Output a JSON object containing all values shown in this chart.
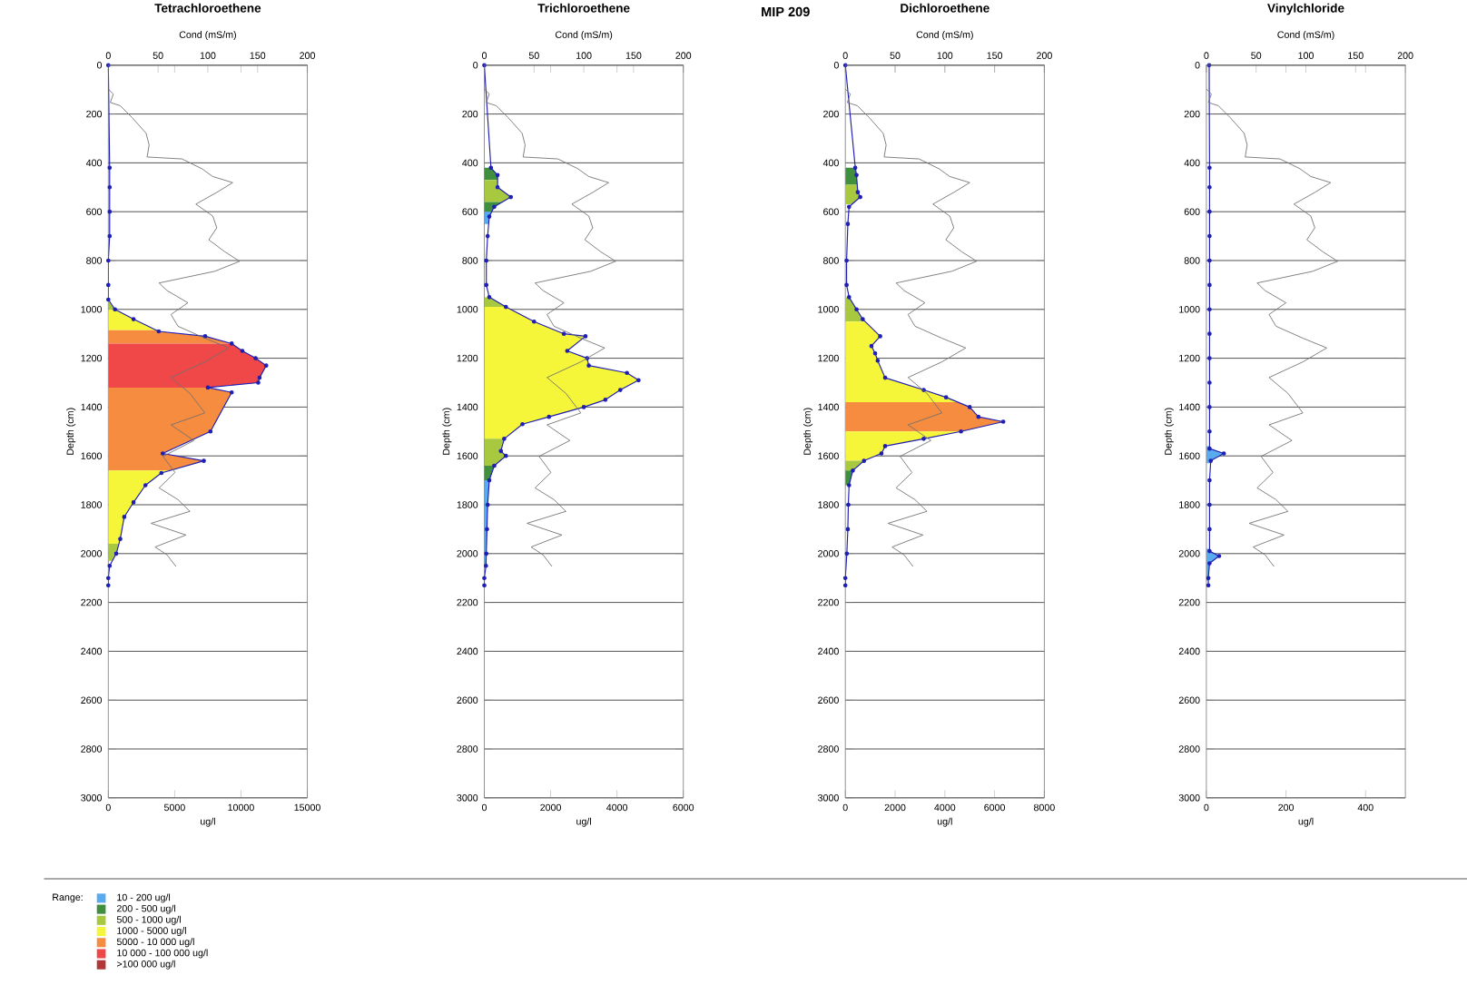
{
  "chart_data": [
    {
      "type": "area",
      "title": "Tetrachloroethene",
      "x2label": "Cond (mS/m)",
      "xlabel": "ug/l",
      "ylabel": "Depth (cm)",
      "orientation": "horizontal",
      "grid": "y",
      "xlim": [
        0,
        15000
      ],
      "xticks": [
        0,
        5000,
        10000,
        15000
      ],
      "x2lim": [
        0,
        200
      ],
      "x2ticks": [
        0,
        50,
        100,
        150,
        200
      ],
      "ylim": [
        3000,
        0
      ],
      "yticks": [
        0,
        200,
        400,
        600,
        800,
        1000,
        1200,
        1400,
        1600,
        1800,
        2000,
        2200,
        2400,
        2600,
        2800,
        3000
      ],
      "series": [
        {
          "type": "area",
          "color": "#a8c840",
          "x": [
            970,
            1000
          ],
          "values": [
            100,
            500
          ]
        },
        {
          "type": "area",
          "color": "#f5f53a",
          "x": [
            1000,
            1040,
            1085
          ],
          "values": [
            500,
            1900,
            3600
          ]
        },
        {
          "type": "area",
          "color": "#f58c40",
          "x": [
            1085,
            1090,
            1110,
            1140
          ],
          "values": [
            3600,
            3800,
            7300,
            9300
          ]
        },
        {
          "type": "area",
          "color": "#f04848",
          "x": [
            1140,
            1170,
            1200,
            1230,
            1280,
            1300,
            1320
          ],
          "values": [
            9300,
            10100,
            11100,
            11900,
            11400,
            11300,
            7500
          ]
        },
        {
          "type": "area",
          "color": "#f58c40",
          "x": [
            1320,
            1340,
            1500,
            1590,
            1620,
            1660
          ],
          "values": [
            7500,
            9300,
            7700,
            4100,
            7200,
            4600
          ]
        },
        {
          "type": "area",
          "color": "#f5f53a",
          "x": [
            1660,
            1670,
            1720,
            1790,
            1850,
            1940,
            1960
          ],
          "values": [
            4600,
            4000,
            2800,
            1900,
            1200,
            900,
            800
          ]
        },
        {
          "type": "area",
          "color": "#a8c840",
          "x": [
            1960,
            2000,
            2030
          ],
          "values": [
            800,
            600,
            300
          ]
        },
        {
          "type": "line",
          "color": "#1f1fb4",
          "marker": "circle",
          "x": [
            0,
            420,
            500,
            600,
            700,
            800,
            900,
            960,
            1000,
            1040,
            1090,
            1110,
            1140,
            1170,
            1200,
            1230,
            1280,
            1300,
            1320,
            1340,
            1500,
            1590,
            1620,
            1670,
            1720,
            1790,
            1850,
            1940,
            2000,
            2050,
            2100,
            2130
          ],
          "values": [
            0,
            100,
            100,
            100,
            100,
            0,
            0,
            0,
            500,
            1900,
            3800,
            7300,
            9300,
            10100,
            11100,
            11900,
            11400,
            11300,
            7500,
            9300,
            7700,
            4100,
            7200,
            4000,
            2800,
            1900,
            1200,
            900,
            600,
            100,
            0,
            0
          ]
        },
        {
          "type": "line",
          "axis": "x2",
          "color": "#707070",
          "x": [
            98,
            118,
            153,
            166,
            215,
            279,
            327,
            376,
            384,
            424,
            456,
            481,
            521,
            569,
            618,
            666,
            715,
            764,
            803,
            844,
            892,
            923,
            973,
            1021,
            1069,
            1118,
            1158,
            1215,
            1279,
            1344,
            1424,
            1473,
            1537,
            1602,
            1668,
            1731,
            1779,
            1827,
            1876,
            1924,
            1973,
            2005,
            2053
          ],
          "values": [
            0,
            5,
            2,
            12,
            24,
            38,
            41,
            39,
            74,
            94,
            105,
            125,
            109,
            88,
            105,
            109,
            101,
            117,
            132,
            107,
            51,
            59,
            80,
            63,
            70,
            97,
            121,
            97,
            63,
            82,
            97,
            63,
            86,
            55,
            67,
            51,
            70,
            82,
            43,
            78,
            47,
            59,
            68
          ]
        }
      ]
    },
    {
      "type": "area",
      "title": "Trichloroethene",
      "x2label": "Cond (mS/m)",
      "xlabel": "ug/l",
      "ylabel": "Depth (cm)",
      "orientation": "horizontal",
      "grid": "y",
      "xlim": [
        0,
        6000
      ],
      "xticks": [
        0,
        2000,
        4000,
        6000
      ],
      "x2lim": [
        0,
        200
      ],
      "x2ticks": [
        0,
        50,
        100,
        150,
        200
      ],
      "ylim": [
        3000,
        0
      ],
      "yticks": [
        0,
        200,
        400,
        600,
        800,
        1000,
        1200,
        1400,
        1600,
        1800,
        2000,
        2200,
        2400,
        2600,
        2800,
        3000
      ],
      "series": [
        {
          "type": "area",
          "color": "#3f8f3f",
          "x": [
            420,
            450,
            470
          ],
          "values": [
            200,
            400,
            400
          ]
        },
        {
          "type": "area",
          "color": "#a8c840",
          "x": [
            470,
            500,
            540,
            560
          ],
          "values": [
            400,
            400,
            800,
            550
          ]
        },
        {
          "type": "area",
          "color": "#3f8f3f",
          "x": [
            560,
            580,
            600
          ],
          "values": [
            550,
            300,
            230
          ]
        },
        {
          "type": "area",
          "color": "#5aaaf0",
          "x": [
            600,
            620,
            650
          ],
          "values": [
            230,
            150,
            130
          ]
        },
        {
          "type": "area",
          "color": "#a8c840",
          "x": [
            950,
            990
          ],
          "values": [
            150,
            650
          ]
        },
        {
          "type": "area",
          "color": "#f5f53a",
          "x": [
            990,
            1050,
            1100,
            1110,
            1170,
            1200,
            1230,
            1260,
            1290,
            1330,
            1370,
            1400,
            1440,
            1470,
            1530
          ],
          "values": [
            650,
            1500,
            2400,
            3050,
            2500,
            3100,
            3150,
            4300,
            4650,
            4100,
            3650,
            3000,
            1950,
            1150,
            600
          ]
        },
        {
          "type": "area",
          "color": "#a8c840",
          "x": [
            1530,
            1580,
            1600,
            1640
          ],
          "values": [
            600,
            500,
            650,
            300
          ]
        },
        {
          "type": "area",
          "color": "#3f8f3f",
          "x": [
            1640,
            1700
          ],
          "values": [
            300,
            150
          ]
        },
        {
          "type": "area",
          "color": "#5aaaf0",
          "x": [
            1700,
            1800,
            1900,
            2000,
            2050
          ],
          "values": [
            150,
            100,
            80,
            60,
            50
          ]
        },
        {
          "type": "line",
          "color": "#1f1fb4",
          "marker": "circle",
          "x": [
            0,
            420,
            450,
            500,
            540,
            580,
            620,
            700,
            800,
            900,
            950,
            990,
            1050,
            1100,
            1110,
            1170,
            1200,
            1230,
            1260,
            1290,
            1330,
            1370,
            1400,
            1440,
            1470,
            1530,
            1580,
            1600,
            1640,
            1700,
            1800,
            1900,
            2000,
            2050,
            2100,
            2130
          ],
          "values": [
            0,
            200,
            400,
            400,
            800,
            300,
            150,
            100,
            60,
            60,
            150,
            650,
            1500,
            2400,
            3050,
            2500,
            3100,
            3150,
            4300,
            4650,
            4100,
            3650,
            3000,
            1950,
            1150,
            600,
            500,
            650,
            300,
            150,
            100,
            80,
            60,
            50,
            0,
            0
          ]
        },
        {
          "type": "line",
          "axis": "x2",
          "color": "#707070",
          "x": [
            98,
            118,
            153,
            166,
            215,
            279,
            327,
            376,
            384,
            424,
            456,
            481,
            521,
            569,
            618,
            666,
            715,
            764,
            803,
            844,
            892,
            923,
            973,
            1021,
            1069,
            1118,
            1158,
            1215,
            1279,
            1344,
            1424,
            1473,
            1537,
            1602,
            1668,
            1731,
            1779,
            1827,
            1876,
            1924,
            1973,
            2005,
            2053
          ],
          "values": [
            0,
            5,
            2,
            12,
            24,
            38,
            41,
            39,
            74,
            94,
            105,
            125,
            109,
            88,
            105,
            109,
            101,
            117,
            132,
            107,
            51,
            59,
            80,
            63,
            70,
            97,
            121,
            97,
            63,
            82,
            97,
            63,
            86,
            55,
            67,
            51,
            70,
            82,
            43,
            78,
            47,
            59,
            68
          ]
        }
      ]
    },
    {
      "type": "area",
      "title": "Dichloroethene",
      "x2label": "Cond (mS/m)",
      "xlabel": "ug/l",
      "ylabel": "Depth (cm)",
      "orientation": "horizontal",
      "grid": "y",
      "xlim": [
        0,
        8000
      ],
      "xticks": [
        0,
        2000,
        4000,
        6000,
        8000
      ],
      "x2lim": [
        0,
        200
      ],
      "x2ticks": [
        0,
        50,
        100,
        150,
        200
      ],
      "ylim": [
        3000,
        0
      ],
      "yticks": [
        0,
        200,
        400,
        600,
        800,
        1000,
        1200,
        1400,
        1600,
        1800,
        2000,
        2200,
        2400,
        2600,
        2800,
        3000
      ],
      "series": [
        {
          "type": "area",
          "color": "#3f8f3f",
          "x": [
            420,
            450,
            490
          ],
          "values": [
            400,
            450,
            480
          ]
        },
        {
          "type": "area",
          "color": "#a8c840",
          "x": [
            490,
            520,
            540,
            570
          ],
          "values": [
            480,
            500,
            600,
            260
          ]
        },
        {
          "type": "area",
          "color": "#a8c840",
          "x": [
            950,
            1000,
            1040,
            1050
          ],
          "values": [
            150,
            450,
            700,
            800
          ]
        },
        {
          "type": "area",
          "color": "#f5f53a",
          "x": [
            1050,
            1110,
            1150,
            1180,
            1210,
            1280,
            1330,
            1360,
            1380
          ],
          "values": [
            800,
            1400,
            1050,
            1200,
            1300,
            1600,
            3150,
            4050,
            4500
          ]
        },
        {
          "type": "area",
          "color": "#f58c40",
          "x": [
            1380,
            1400,
            1440,
            1460,
            1500
          ],
          "values": [
            4500,
            5000,
            5350,
            6350,
            4650
          ]
        },
        {
          "type": "area",
          "color": "#f5f53a",
          "x": [
            1500,
            1530,
            1560,
            1590,
            1620
          ],
          "values": [
            4650,
            3150,
            1600,
            1450,
            750
          ]
        },
        {
          "type": "area",
          "color": "#a8c840",
          "x": [
            1620,
            1660
          ],
          "values": [
            750,
            300
          ]
        },
        {
          "type": "area",
          "color": "#3f8f3f",
          "x": [
            1660,
            1720
          ],
          "values": [
            300,
            150
          ]
        },
        {
          "type": "line",
          "color": "#1f1fb4",
          "marker": "circle",
          "x": [
            0,
            420,
            450,
            520,
            540,
            580,
            650,
            800,
            900,
            950,
            1000,
            1040,
            1110,
            1150,
            1180,
            1210,
            1280,
            1330,
            1360,
            1400,
            1440,
            1460,
            1500,
            1530,
            1560,
            1590,
            1620,
            1660,
            1720,
            1800,
            1900,
            2000,
            2100,
            2130
          ],
          "values": [
            0,
            400,
            450,
            500,
            600,
            150,
            100,
            50,
            50,
            150,
            450,
            700,
            1400,
            1050,
            1200,
            1300,
            1600,
            3150,
            4050,
            5000,
            5350,
            6350,
            4650,
            3150,
            1600,
            1450,
            750,
            300,
            150,
            120,
            100,
            60,
            0,
            0
          ]
        },
        {
          "type": "line",
          "axis": "x2",
          "color": "#707070",
          "x": [
            98,
            118,
            153,
            166,
            215,
            279,
            327,
            376,
            384,
            424,
            456,
            481,
            521,
            569,
            618,
            666,
            715,
            764,
            803,
            844,
            892,
            923,
            973,
            1021,
            1069,
            1118,
            1158,
            1215,
            1279,
            1344,
            1424,
            1473,
            1537,
            1602,
            1668,
            1731,
            1779,
            1827,
            1876,
            1924,
            1973,
            2005,
            2053
          ],
          "values": [
            0,
            5,
            2,
            12,
            24,
            38,
            41,
            39,
            74,
            94,
            105,
            125,
            109,
            88,
            105,
            109,
            101,
            117,
            132,
            107,
            51,
            59,
            80,
            63,
            70,
            97,
            121,
            97,
            63,
            82,
            97,
            63,
            86,
            55,
            67,
            51,
            70,
            82,
            43,
            78,
            47,
            59,
            68
          ]
        }
      ]
    },
    {
      "type": "area",
      "title": "Vinylchloride",
      "x2label": "Cond (mS/m)",
      "xlabel": "ug/l",
      "ylabel": "Depth (cm)",
      "orientation": "horizontal",
      "grid": "y",
      "xlim": [
        0,
        500
      ],
      "xticks": [
        0,
        200,
        400
      ],
      "x2lim": [
        0,
        200
      ],
      "x2ticks": [
        0,
        50,
        100,
        150,
        200
      ],
      "ylim": [
        3000,
        0
      ],
      "yticks": [
        0,
        200,
        400,
        600,
        800,
        1000,
        1200,
        1400,
        1600,
        1800,
        2000,
        2200,
        2400,
        2600,
        2800,
        3000
      ],
      "series": [
        {
          "type": "area",
          "color": "#5aaaf0",
          "x": [
            1560,
            1570,
            1590,
            1620,
            1630
          ],
          "values": [
            8,
            8,
            44,
            11,
            8
          ]
        },
        {
          "type": "area",
          "color": "#5aaaf0",
          "x": [
            1980,
            1990,
            2010,
            2040,
            2100,
            2110
          ],
          "values": [
            8,
            8,
            32,
            8,
            5,
            5
          ]
        },
        {
          "type": "line",
          "color": "#1f1fb4",
          "marker": "circle",
          "x": [
            0,
            420,
            500,
            600,
            700,
            800,
            900,
            1000,
            1100,
            1200,
            1300,
            1400,
            1500,
            1570,
            1590,
            1620,
            1700,
            1800,
            1900,
            1990,
            2010,
            2040,
            2100,
            2130
          ],
          "values": [
            7,
            8,
            8,
            8,
            8,
            8,
            8,
            8,
            8,
            8,
            8,
            8,
            8,
            8,
            44,
            11,
            8,
            8,
            8,
            8,
            32,
            8,
            5,
            5
          ]
        },
        {
          "type": "line",
          "axis": "x2",
          "color": "#707070",
          "x": [
            98,
            118,
            153,
            166,
            215,
            279,
            327,
            376,
            384,
            424,
            456,
            481,
            521,
            569,
            618,
            666,
            715,
            764,
            803,
            844,
            892,
            923,
            973,
            1021,
            1069,
            1118,
            1158,
            1215,
            1279,
            1344,
            1424,
            1473,
            1537,
            1602,
            1668,
            1731,
            1779,
            1827,
            1876,
            1924,
            1973,
            2005,
            2053
          ],
          "values": [
            0,
            5,
            2,
            12,
            24,
            38,
            41,
            39,
            74,
            94,
            105,
            125,
            109,
            88,
            105,
            109,
            101,
            117,
            132,
            107,
            51,
            59,
            80,
            63,
            70,
            97,
            121,
            97,
            63,
            82,
            97,
            63,
            86,
            55,
            67,
            51,
            70,
            82,
            43,
            78,
            47,
            59,
            68
          ]
        }
      ]
    },
    {
      "type": "other",
      "title": "MIP 209",
      "legend_title": "Range:",
      "categories": [
        "10 - 200 ug/l",
        "200 - 500 ug/l",
        "500 - 1000 ug/l",
        "1000 - 5000 ug/l",
        "5000 - 10 000 ug/l",
        "10 000 - 100 000 ug/l",
        ">100 000 ug/l"
      ],
      "colors": [
        "#5aaaf0",
        "#3f8f3f",
        "#a8c840",
        "#f5f53a",
        "#f58c40",
        "#f04848",
        "#b03838"
      ]
    }
  ]
}
